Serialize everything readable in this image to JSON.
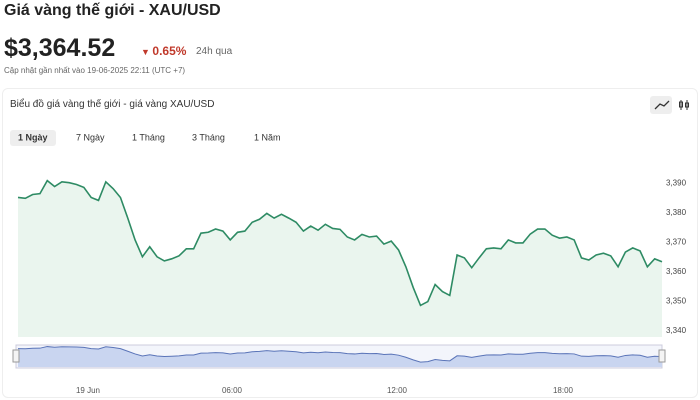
{
  "header": {
    "title": "Giá vàng thế giới - XAU/USD",
    "price": "$3,364.52",
    "change": "0.65%",
    "period": "24h qua",
    "updated": "Cập nhật gần nhất vào 19-06-2025 22:11 (UTC +7)"
  },
  "card": {
    "title": "Biểu đồ giá vàng thế giới - giá vàng XAU/USD"
  },
  "tabs": {
    "items": [
      "1 Ngày",
      "7 Ngày",
      "1 Tháng",
      "3 Tháng",
      "1 Năm"
    ],
    "active": 0
  },
  "chart_data": {
    "type": "area",
    "color": "#2e8b64",
    "fill": "#eaf5ee",
    "grid": false,
    "values": [
      3385.3,
      3385,
      3386.3,
      3386.6,
      3391,
      3389,
      3390.6,
      3390.3,
      3389.7,
      3388.7,
      3385.3,
      3384.3,
      3390.6,
      3388.3,
      3385.3,
      3378.3,
      3370.9,
      3365.2,
      3368.6,
      3365.2,
      3363.8,
      3364.5,
      3365.5,
      3367.9,
      3367.9,
      3373.2,
      3373.5,
      3374.6,
      3373.9,
      3370.9,
      3373.5,
      3373.9,
      3376.9,
      3377.9,
      3379.9,
      3378.3,
      3379.6,
      3378.3,
      3376.9,
      3373.9,
      3375.6,
      3374.2,
      3376.2,
      3374.8,
      3374.5,
      3371.9,
      3370.9,
      3372.8,
      3371.9,
      3372.2,
      3369.5,
      3370.5,
      3367.5,
      3361.8,
      3354.8,
      3348.7,
      3350,
      3355.8,
      3353.4,
      3352.1,
      3365.8,
      3364.8,
      3361.5,
      3364.8,
      3367.9,
      3368.2,
      3367.9,
      3370.9,
      3369.9,
      3369.9,
      3372.9,
      3374.6,
      3374.6,
      3372.5,
      3371.5,
      3371.9,
      3370.9,
      3364.8,
      3364.1,
      3365.8,
      3366.4,
      3365.5,
      3361.8,
      3366.8,
      3368.2,
      3367.2,
      3361.8,
      3364.5,
      3363.5
    ],
    "ylim": [
      3338,
      3398
    ],
    "yticks": [
      {
        "value": 3340,
        "label": "3,340"
      },
      {
        "value": 3350,
        "label": "3,350"
      },
      {
        "value": 3360,
        "label": "3,360"
      },
      {
        "value": 3370,
        "label": "3,370"
      },
      {
        "value": 3380,
        "label": "3,380"
      },
      {
        "value": 3390,
        "label": "3,390"
      }
    ],
    "navigator": {
      "labels": [
        "19 Jun",
        "06:00",
        "12:00",
        "18:00"
      ]
    }
  }
}
